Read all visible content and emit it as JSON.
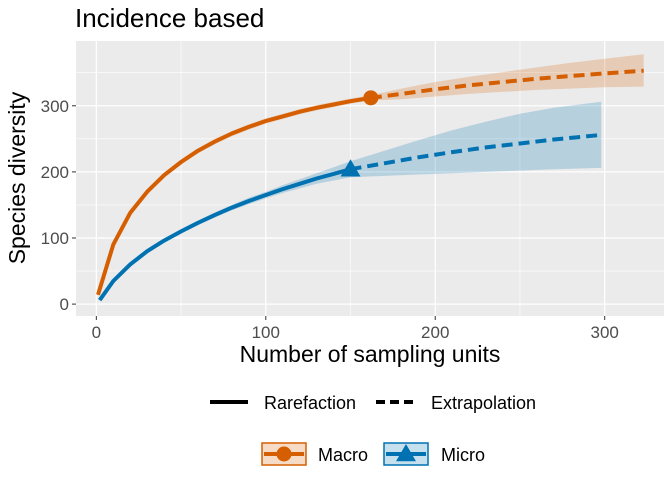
{
  "chart_data": {
    "type": "line",
    "title": "Incidence based",
    "xlabel": "Number of sampling units",
    "ylabel": "Species diversity",
    "xlim": [
      -12,
      335
    ],
    "ylim": [
      -18,
      398
    ],
    "x_ticks": [
      0,
      100,
      200,
      300
    ],
    "y_ticks": [
      0,
      100,
      200,
      300
    ],
    "grid": true,
    "legend_position": "bottom",
    "linetype_legend": [
      {
        "label": "Rarefaction",
        "style": "solid"
      },
      {
        "label": "Extrapolation",
        "style": "dashed"
      }
    ],
    "series": [
      {
        "name": "Macro",
        "color": "#D55E00",
        "marker": "circle",
        "observed": {
          "x": 162,
          "y": 312
        },
        "rarefaction": {
          "x": [
            1,
            10,
            20,
            30,
            40,
            50,
            60,
            70,
            80,
            90,
            100,
            110,
            120,
            130,
            140,
            150,
            162
          ],
          "y": [
            14,
            90,
            138,
            170,
            195,
            215,
            232,
            246,
            258,
            268,
            277,
            284,
            291,
            297,
            302,
            307,
            312
          ]
        },
        "extrapolation": {
          "x": [
            162,
            180,
            200,
            220,
            240,
            260,
            280,
            300,
            323
          ],
          "y": [
            312,
            318,
            325,
            331,
            336,
            341,
            345,
            349,
            353
          ]
        },
        "ci_lower": [
          12,
          86,
          134,
          166,
          191,
          211,
          228,
          242,
          254,
          264,
          273,
          280,
          287,
          293,
          298,
          303,
          308,
          310,
          314,
          318,
          321,
          324,
          326,
          328,
          329
        ],
        "ci_upper": [
          16,
          94,
          142,
          174,
          199,
          219,
          236,
          250,
          262,
          272,
          281,
          288,
          295,
          301,
          306,
          311,
          316,
          326,
          336,
          344,
          351,
          358,
          365,
          371,
          378
        ]
      },
      {
        "name": "Micro",
        "color": "#0072B2",
        "marker": "triangle",
        "observed": {
          "x": 150,
          "y": 204
        },
        "rarefaction": {
          "x": [
            2,
            10,
            20,
            30,
            40,
            50,
            60,
            70,
            80,
            90,
            100,
            110,
            120,
            130,
            140,
            150
          ],
          "y": [
            6,
            35,
            60,
            80,
            96,
            110,
            123,
            135,
            146,
            156,
            165,
            174,
            182,
            190,
            197,
            204
          ]
        },
        "extrapolation": {
          "x": [
            150,
            170,
            190,
            210,
            230,
            250,
            270,
            298
          ],
          "y": [
            204,
            213,
            222,
            230,
            237,
            243,
            249,
            256
          ]
        },
        "ci_lower": [
          5,
          33,
          57,
          77,
          93,
          107,
          120,
          131,
          142,
          151,
          160,
          168,
          175,
          182,
          187,
          192,
          194,
          196,
          198,
          200,
          202,
          204,
          206
        ],
        "ci_upper": [
          7,
          37,
          63,
          83,
          99,
          113,
          126,
          139,
          150,
          161,
          170,
          180,
          189,
          198,
          207,
          216,
          232,
          248,
          263,
          276,
          288,
          297,
          306
        ]
      }
    ]
  }
}
